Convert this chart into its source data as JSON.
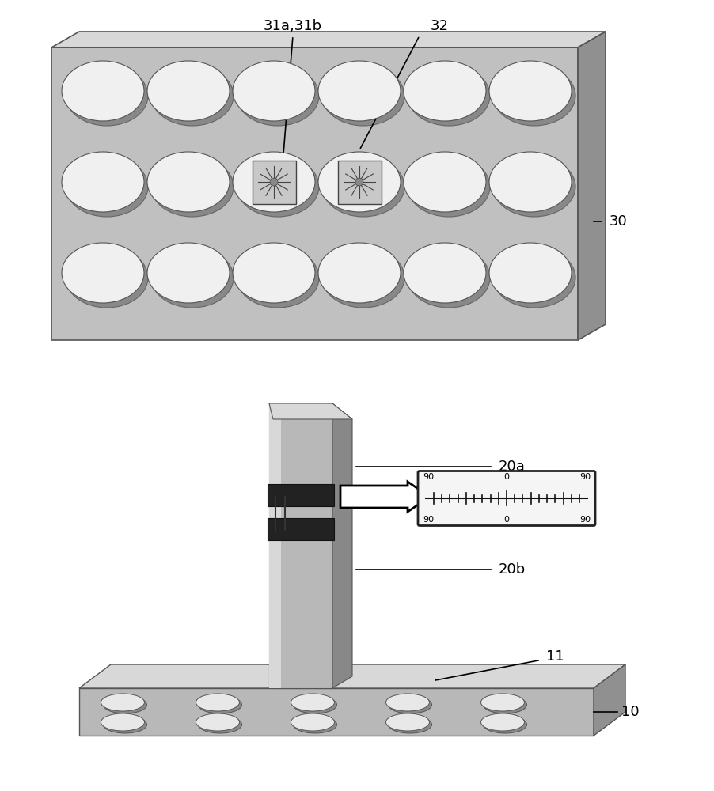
{
  "bg_color": "#ffffff",
  "panel_color": "#c0c0c0",
  "panel_dark": "#909090",
  "panel_light": "#d8d8d8",
  "hole_color": "#e8e8e8",
  "hole_shadow": "#888888",
  "post_color": "#b8b8b8",
  "post_dark": "#888888",
  "post_light": "#d8d8d8",
  "base_color": "#b8b8b8",
  "base_dark": "#888888",
  "clamp_color": "#a0a0a0",
  "labels": {
    "31ab": "31a,31b",
    "32": "32",
    "30": "30",
    "20a": "20a",
    "20b": "20b",
    "11": "11",
    "10": "10"
  },
  "scale_numbers": [
    "90",
    "0",
    "90",
    "90",
    "0",
    "90"
  ]
}
